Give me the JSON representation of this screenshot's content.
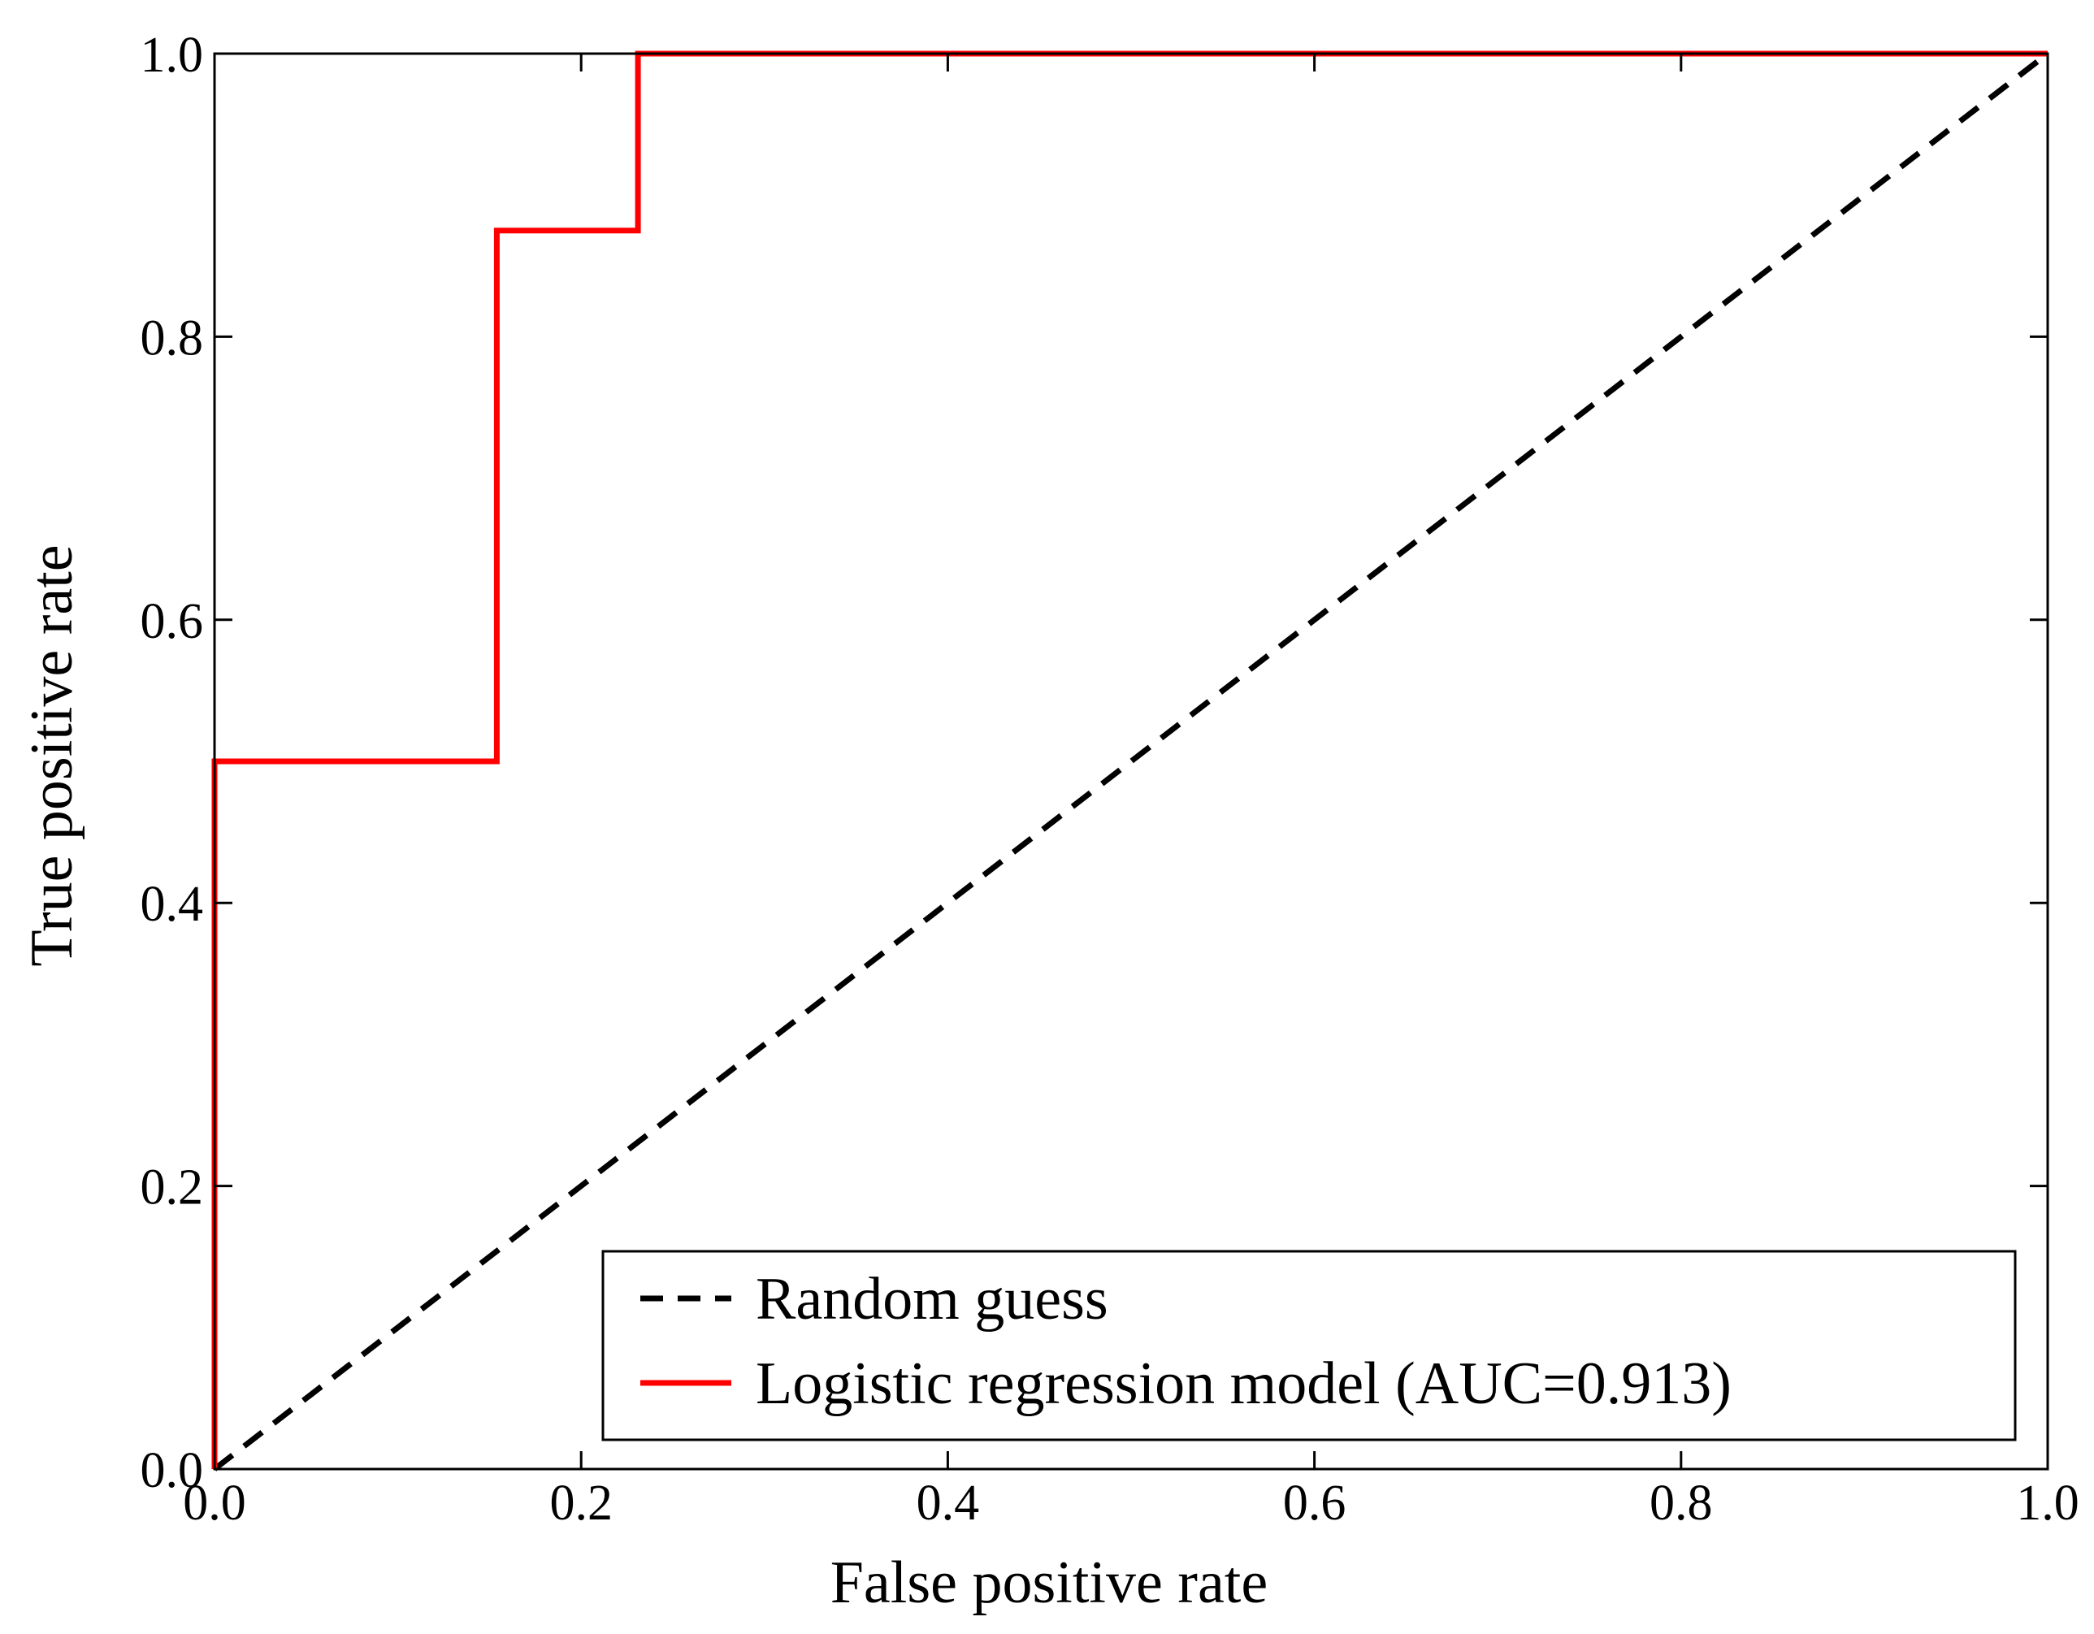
{
  "chart_data": {
    "type": "line",
    "title": "",
    "xlabel": "False positive rate",
    "ylabel": "True positive rate",
    "xlim": [
      0.0,
      1.0
    ],
    "ylim": [
      0.0,
      1.0
    ],
    "x_ticks": [
      0.0,
      0.2,
      0.4,
      0.6,
      0.8,
      1.0
    ],
    "y_ticks": [
      0.0,
      0.2,
      0.4,
      0.6,
      0.8,
      1.0
    ],
    "x_tick_labels": [
      "0.0",
      "0.2",
      "0.4",
      "0.6",
      "0.8",
      "1.0"
    ],
    "y_tick_labels": [
      "0.0",
      "0.2",
      "0.4",
      "0.6",
      "0.8",
      "1.0"
    ],
    "grid": false,
    "legend_position": "lower-right",
    "series": [
      {
        "name": "Random guess",
        "style": "dashed",
        "color": "#000000",
        "x": [
          0.0,
          1.0
        ],
        "y": [
          0.0,
          1.0
        ]
      },
      {
        "name": "Logistic regression model (AUC=0.913)",
        "style": "solid",
        "color": "#ff0000",
        "x": [
          0.0,
          0.0,
          0.154,
          0.154,
          0.231,
          0.231,
          1.0
        ],
        "y": [
          0.0,
          0.5,
          0.5,
          0.875,
          0.875,
          1.0,
          1.0
        ]
      }
    ]
  }
}
